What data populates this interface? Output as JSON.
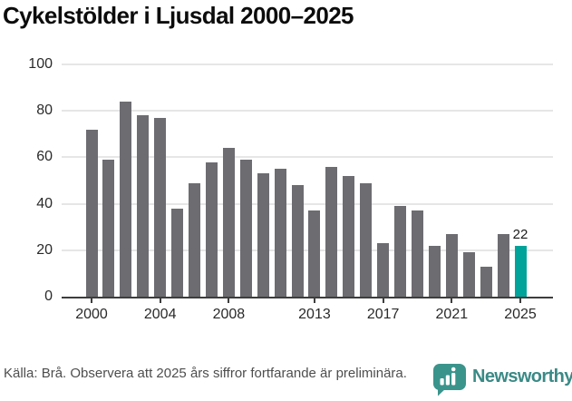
{
  "title": "Cykelstölder i Ljusdal 2000–2025",
  "footer": {
    "source_note": "Källa: Brå. Observera att 2025 års siffror fortfarande är preliminära.",
    "brand_name": "Newsworthy"
  },
  "colors": {
    "bar": "#6d6c71",
    "highlight_bar": "#00a39a",
    "axis": "#3d3d3d",
    "gridline": "#e6e6e6",
    "brand_icon": "#3a948c",
    "brand_text": "#3a8a86",
    "title_text": "#0c0c0c",
    "tick_text": "#2a2a2a",
    "footer_text": "#4e4e4e"
  },
  "chart_data": {
    "type": "bar",
    "title": "Cykelstölder i Ljusdal 2000–2025",
    "categories": [
      2000,
      2001,
      2002,
      2003,
      2004,
      2005,
      2006,
      2007,
      2008,
      2009,
      2010,
      2011,
      2012,
      2013,
      2014,
      2015,
      2016,
      2017,
      2018,
      2019,
      2020,
      2021,
      2022,
      2023,
      2024,
      2025
    ],
    "values": [
      72,
      59,
      84,
      78,
      77,
      38,
      49,
      58,
      64,
      59,
      53,
      55,
      48,
      37,
      56,
      52,
      49,
      23,
      39,
      37,
      22,
      27,
      19,
      13,
      27,
      22
    ],
    "highlight_index": 25,
    "highlight_label": "22",
    "x_tick_labels": [
      "2000",
      "2004",
      "2008",
      "2013",
      "2017",
      "2021",
      "2025"
    ],
    "y_ticks": [
      0,
      20,
      40,
      60,
      80,
      100
    ],
    "ylim": [
      0,
      100
    ],
    "grid": "horizontal-only",
    "legend": "none",
    "bar_color": "#6d6c71",
    "highlight_color": "#00a39a"
  }
}
